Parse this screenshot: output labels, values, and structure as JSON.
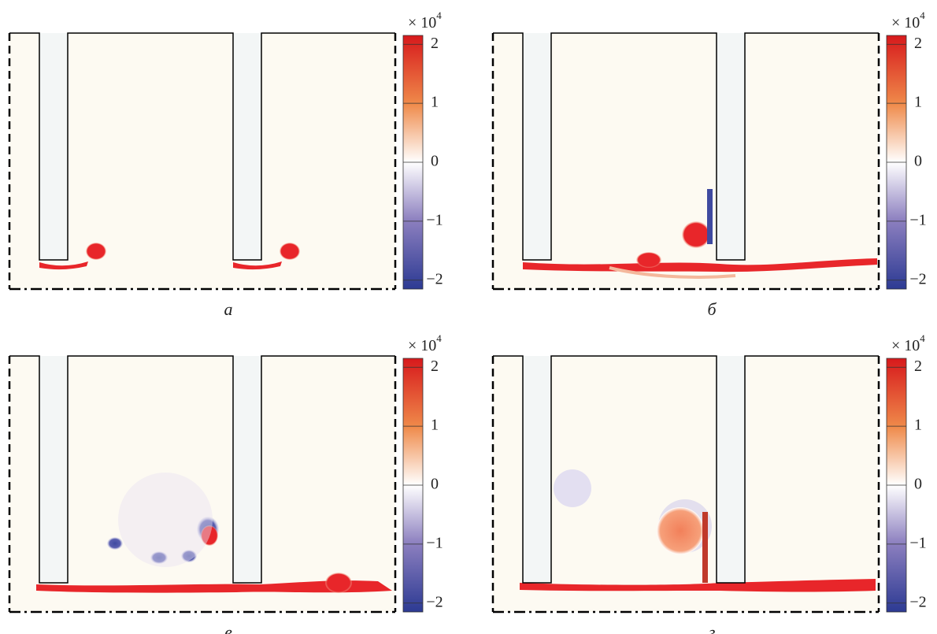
{
  "panels": [
    {
      "caption": "а",
      "colorbar": {
        "multiplier": {
          "base": "× 10",
          "exponent": "4"
        },
        "lim": [
          -2.15,
          2.15
        ],
        "ticks": [
          {
            "value": 2,
            "label": "2"
          },
          {
            "value": 1,
            "label": "1"
          },
          {
            "value": 0,
            "label": "0"
          },
          {
            "value": -1,
            "label": "−1"
          },
          {
            "value": -2,
            "label": "−2"
          }
        ]
      }
    },
    {
      "caption": "б",
      "colorbar": {
        "multiplier": {
          "base": "× 10",
          "exponent": "4"
        },
        "lim": [
          -2.15,
          2.15
        ],
        "ticks": [
          {
            "value": 2,
            "label": "2"
          },
          {
            "value": 1,
            "label": "1"
          },
          {
            "value": 0,
            "label": "0"
          },
          {
            "value": -1,
            "label": "−1"
          },
          {
            "value": -2,
            "label": "−2"
          }
        ]
      }
    },
    {
      "caption": "в",
      "colorbar": {
        "multiplier": {
          "base": "× 10",
          "exponent": "4"
        },
        "lim": [
          -2.15,
          2.15
        ],
        "ticks": [
          {
            "value": 2,
            "label": "2"
          },
          {
            "value": 1,
            "label": "1"
          },
          {
            "value": 0,
            "label": "0"
          },
          {
            "value": -1,
            "label": "−1"
          },
          {
            "value": -2,
            "label": "−2"
          }
        ]
      }
    },
    {
      "caption": "г",
      "colorbar": {
        "multiplier": {
          "base": "× 10",
          "exponent": "4"
        },
        "lim": [
          -2.15,
          2.15
        ],
        "ticks": [
          {
            "value": 2,
            "label": "2"
          },
          {
            "value": 1,
            "label": "1"
          },
          {
            "value": 0,
            "label": "0"
          },
          {
            "value": -1,
            "label": "−1"
          },
          {
            "value": -2,
            "label": "−2"
          }
        ]
      }
    }
  ]
}
